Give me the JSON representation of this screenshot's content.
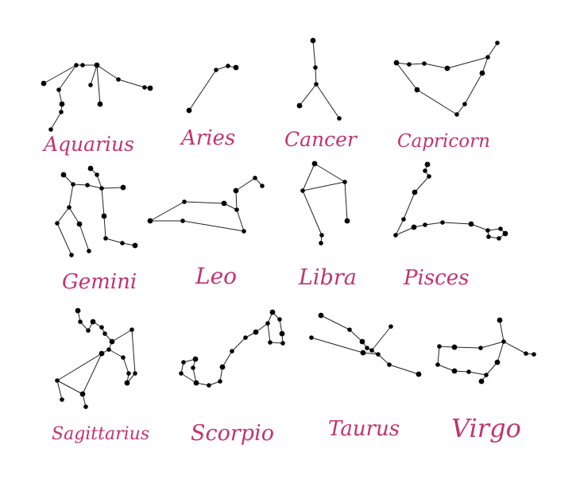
{
  "colors": {
    "label": "#c2336f",
    "star": "#000000",
    "line": "#222222"
  },
  "constellations": [
    {
      "id": "aquarius",
      "name": "Aquarius"
    },
    {
      "id": "aries",
      "name": "Aries"
    },
    {
      "id": "cancer",
      "name": "Cancer"
    },
    {
      "id": "capricorn",
      "name": "Capricorn"
    },
    {
      "id": "gemini",
      "name": "Gemini"
    },
    {
      "id": "leo",
      "name": "Leo"
    },
    {
      "id": "libra",
      "name": "Libra"
    },
    {
      "id": "pisces",
      "name": "Pisces"
    },
    {
      "id": "sagittarius",
      "name": "Sagittarius"
    },
    {
      "id": "scorpio",
      "name": "Scorpio"
    },
    {
      "id": "taurus",
      "name": "Taurus"
    },
    {
      "id": "virgo",
      "name": "Virgo"
    }
  ]
}
